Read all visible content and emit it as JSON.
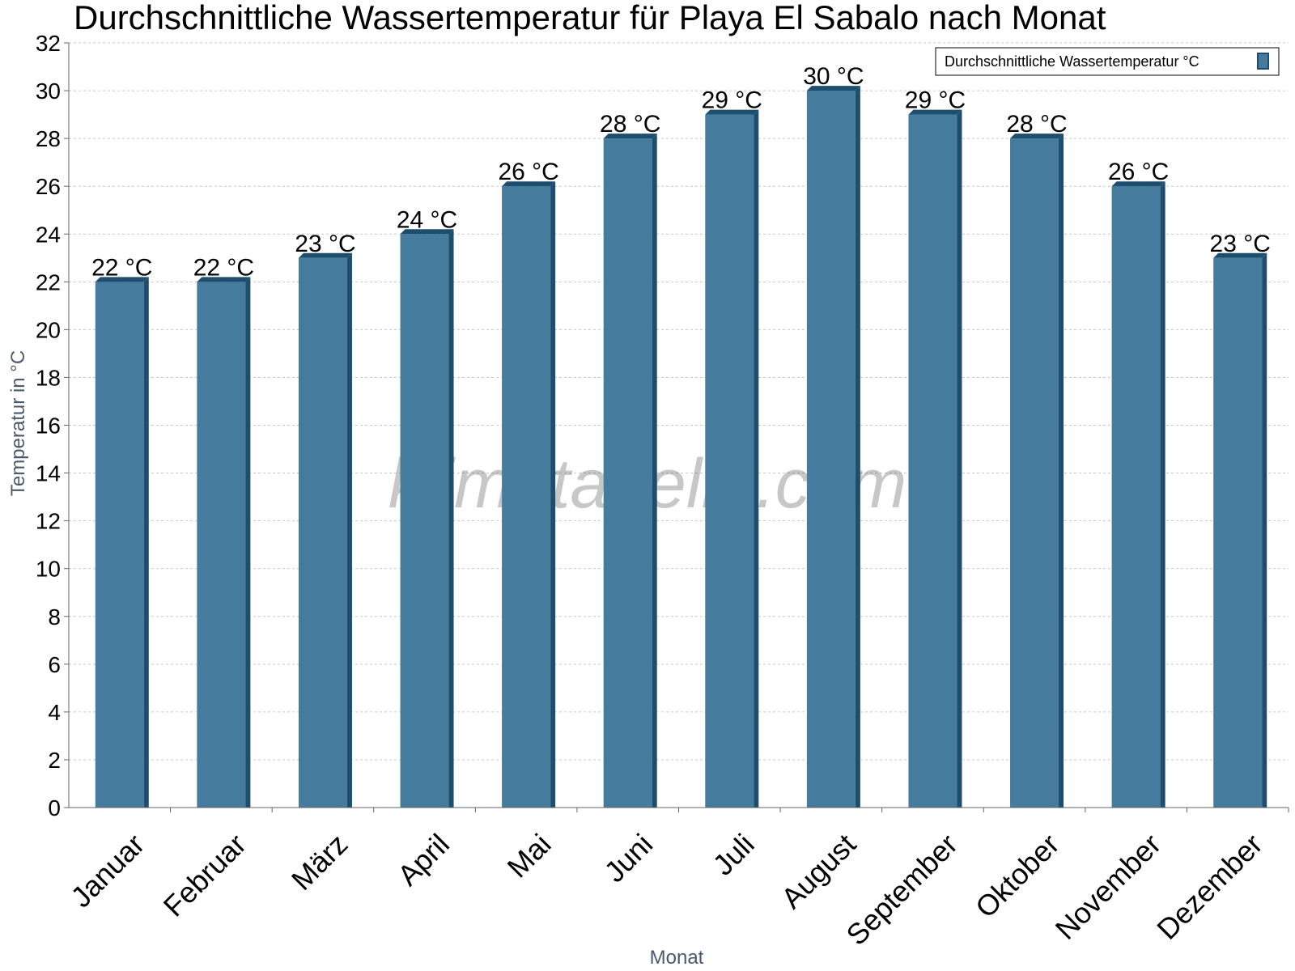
{
  "chart_data": {
    "type": "bar",
    "title": "Durchschnittliche Wassertemperatur für Playa El Sabalo nach Monat",
    "xlabel": "Monat",
    "ylabel": "Temperatur in °C",
    "categories": [
      "Januar",
      "Februar",
      "März",
      "April",
      "Mai",
      "Juni",
      "Juli",
      "August",
      "September",
      "Oktober",
      "November",
      "Dezember"
    ],
    "series": [
      {
        "name": "Durchschnittliche Wassertemperatur °C",
        "values": [
          22,
          22,
          23,
          24,
          26,
          28,
          29,
          30,
          29,
          28,
          26,
          23
        ],
        "labels": [
          "22 °C",
          "22 °C",
          "23 °C",
          "24 °C",
          "26 °C",
          "28 °C",
          "29 °C",
          "30 °C",
          "29 °C",
          "28 °C",
          "26 °C",
          "23 °C"
        ]
      }
    ],
    "ylim": [
      0,
      32
    ],
    "yticks": [
      0,
      2,
      4,
      6,
      8,
      10,
      12,
      14,
      16,
      18,
      20,
      22,
      24,
      26,
      28,
      30,
      32
    ],
    "grid": true,
    "legend": "top-right",
    "colors": {
      "bar": "#457b9d",
      "bar_edge": "#1d4e6e",
      "grid": "#c8c8c8"
    }
  },
  "watermark": "klimatabelle.com"
}
